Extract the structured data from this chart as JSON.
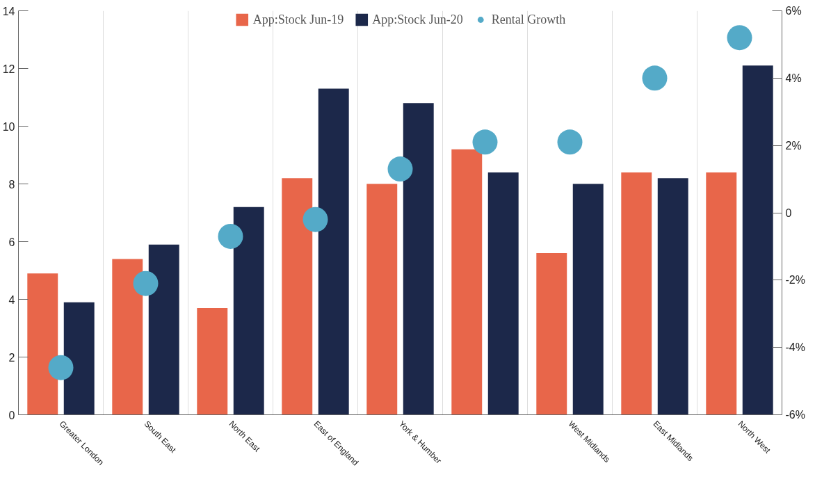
{
  "chart_data": {
    "type": "bar",
    "categories": [
      "Greater London",
      "South East",
      "North East",
      "East of England",
      "York & Humber",
      null,
      "West Midlands",
      "East Midlands",
      "North West"
    ],
    "series": [
      {
        "name": "App:Stock Jun-19",
        "color": "#e8664a",
        "values": [
          4.9,
          5.4,
          3.7,
          8.2,
          8.0,
          9.2,
          5.6,
          8.4,
          8.4
        ]
      },
      {
        "name": "App:Stock Jun-20",
        "color": "#1c284a",
        "values": [
          3.9,
          5.9,
          7.2,
          11.3,
          10.8,
          8.4,
          8.0,
          8.2,
          12.1
        ]
      },
      {
        "name": "Rental Growth",
        "type": "scatter",
        "axis": "y2",
        "color": "#54aac8",
        "values": [
          -4.6,
          -2.1,
          -0.7,
          -0.2,
          1.3,
          2.1,
          2.1,
          4.0,
          5.2
        ]
      }
    ],
    "ylim": [
      0,
      14
    ],
    "yticks": [
      0,
      2,
      4,
      6,
      8,
      10,
      12,
      14
    ],
    "y2lim": [
      -6,
      6
    ],
    "y2ticks": [
      {
        "value": -6,
        "label": "-6%"
      },
      {
        "value": -4,
        "label": "-4%"
      },
      {
        "value": -2,
        "label": "-2%"
      },
      0,
      {
        "value": 2,
        "label": "2%"
      },
      {
        "value": 4,
        "label": "4%"
      },
      {
        "value": 6,
        "label": "6%"
      }
    ],
    "grid": "x",
    "legend": "top",
    "marker": "circle"
  }
}
